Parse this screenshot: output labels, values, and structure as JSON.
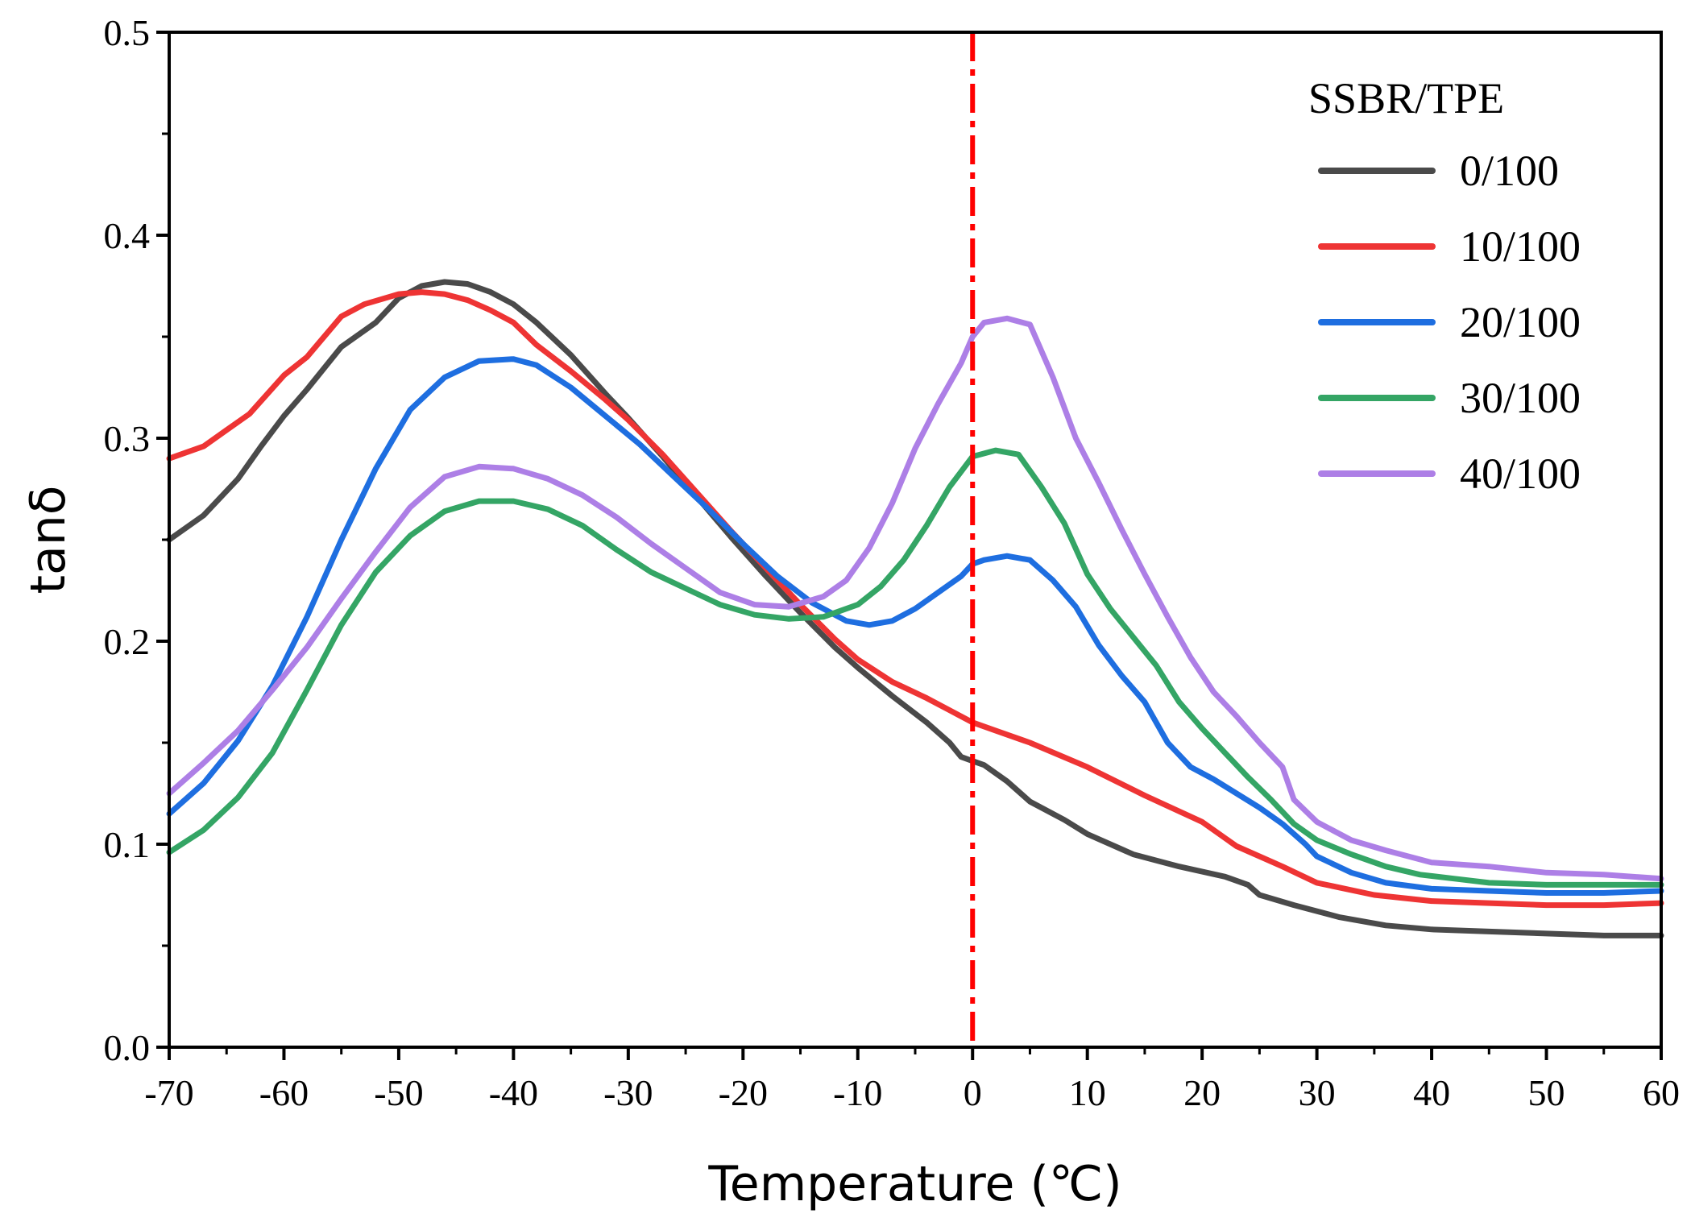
{
  "chart_data": {
    "type": "line",
    "title": "",
    "xlabel": "Temperature (℃)",
    "ylabel": "tanδ",
    "xlim": [
      -70,
      60
    ],
    "ylim": [
      0.0,
      0.5
    ],
    "xticks": [
      -70,
      -60,
      -50,
      -40,
      -30,
      -20,
      -10,
      0,
      10,
      20,
      30,
      40,
      50,
      60
    ],
    "xtick_labels": [
      "-70",
      "-60",
      "-50",
      "-40",
      "-30",
      "-20",
      "-10",
      "0",
      "10",
      "20",
      "30",
      "40",
      "50",
      "60"
    ],
    "yticks": [
      0.0,
      0.1,
      0.2,
      0.3,
      0.4,
      0.5
    ],
    "ytick_labels": [
      "0.0",
      "0.1",
      "0.2",
      "0.3",
      "0.4",
      "0.5"
    ],
    "grid": false,
    "legend_title": "SSBR/TPE",
    "legend_position": "top-right",
    "reference_line": {
      "x": 0,
      "color": "#ff0000",
      "style": "dash-dot"
    },
    "series": [
      {
        "name": "0/100",
        "color": "#4a4a4a",
        "x": [
          -70,
          -67,
          -64,
          -62,
          -60,
          -58,
          -55,
          -52,
          -50,
          -48,
          -46,
          -44,
          -42,
          -40,
          -38,
          -35,
          -32,
          -30,
          -27,
          -24,
          -21,
          -18,
          -15,
          -12,
          -10,
          -7,
          -4,
          -2,
          -1,
          0,
          1,
          3,
          5,
          8,
          10,
          14,
          18,
          22,
          24,
          25,
          28,
          32,
          36,
          40,
          45,
          50,
          55,
          60
        ],
        "y": [
          0.25,
          0.262,
          0.28,
          0.296,
          0.311,
          0.324,
          0.345,
          0.357,
          0.369,
          0.375,
          0.377,
          0.376,
          0.372,
          0.366,
          0.357,
          0.341,
          0.322,
          0.31,
          0.291,
          0.271,
          0.251,
          0.232,
          0.214,
          0.197,
          0.187,
          0.173,
          0.16,
          0.15,
          0.143,
          0.141,
          0.139,
          0.131,
          0.121,
          0.112,
          0.105,
          0.095,
          0.089,
          0.084,
          0.08,
          0.075,
          0.07,
          0.064,
          0.06,
          0.058,
          0.057,
          0.056,
          0.055,
          0.055
        ]
      },
      {
        "name": "10/100",
        "color": "#ee3434",
        "x": [
          -70,
          -67,
          -65,
          -63,
          -60,
          -58,
          -55,
          -53,
          -50,
          -48,
          -46,
          -44,
          -42,
          -40,
          -38,
          -35,
          -32,
          -30,
          -27,
          -24,
          -21,
          -18,
          -15,
          -12,
          -10,
          -7,
          -4,
          -2,
          0,
          2,
          5,
          10,
          15,
          20,
          23,
          27,
          30,
          35,
          40,
          45,
          50,
          55,
          60
        ],
        "y": [
          0.29,
          0.296,
          0.304,
          0.312,
          0.331,
          0.34,
          0.36,
          0.366,
          0.371,
          0.372,
          0.371,
          0.368,
          0.363,
          0.357,
          0.346,
          0.333,
          0.319,
          0.309,
          0.292,
          0.273,
          0.254,
          0.236,
          0.218,
          0.201,
          0.191,
          0.18,
          0.172,
          0.166,
          0.16,
          0.156,
          0.15,
          0.138,
          0.124,
          0.111,
          0.099,
          0.089,
          0.081,
          0.075,
          0.072,
          0.071,
          0.07,
          0.07,
          0.071
        ]
      },
      {
        "name": "20/100",
        "color": "#1e6ee0",
        "x": [
          -70,
          -67,
          -64,
          -61,
          -58,
          -55,
          -52,
          -49,
          -46,
          -43,
          -40,
          -38,
          -35,
          -32,
          -29,
          -26,
          -23,
          -20,
          -17,
          -14,
          -11,
          -9,
          -7,
          -5,
          -3,
          -1,
          0,
          1,
          3,
          5,
          7,
          9,
          11,
          13,
          15,
          17,
          19,
          21,
          23,
          25,
          27,
          29,
          30,
          33,
          36,
          40,
          45,
          50,
          55,
          60
        ],
        "y": [
          0.115,
          0.13,
          0.151,
          0.178,
          0.212,
          0.25,
          0.285,
          0.314,
          0.33,
          0.338,
          0.339,
          0.336,
          0.325,
          0.311,
          0.297,
          0.281,
          0.265,
          0.248,
          0.232,
          0.219,
          0.21,
          0.208,
          0.21,
          0.216,
          0.224,
          0.232,
          0.238,
          0.24,
          0.242,
          0.24,
          0.23,
          0.217,
          0.198,
          0.183,
          0.17,
          0.15,
          0.138,
          0.132,
          0.125,
          0.118,
          0.11,
          0.1,
          0.094,
          0.086,
          0.081,
          0.078,
          0.077,
          0.076,
          0.076,
          0.077
        ]
      },
      {
        "name": "30/100",
        "color": "#34a565",
        "x": [
          -70,
          -67,
          -64,
          -61,
          -58,
          -55,
          -52,
          -49,
          -46,
          -43,
          -40,
          -37,
          -34,
          -31,
          -28,
          -25,
          -22,
          -19,
          -16,
          -13,
          -10,
          -8,
          -6,
          -4,
          -2,
          0,
          2,
          4,
          6,
          8,
          10,
          12,
          14,
          16,
          18,
          20,
          22,
          24,
          26,
          28,
          30,
          33,
          36,
          39,
          42,
          45,
          50,
          55,
          60
        ],
        "y": [
          0.096,
          0.107,
          0.123,
          0.145,
          0.176,
          0.208,
          0.234,
          0.252,
          0.264,
          0.269,
          0.269,
          0.265,
          0.257,
          0.245,
          0.234,
          0.226,
          0.218,
          0.213,
          0.211,
          0.212,
          0.218,
          0.227,
          0.24,
          0.257,
          0.276,
          0.291,
          0.294,
          0.292,
          0.276,
          0.258,
          0.233,
          0.216,
          0.202,
          0.188,
          0.17,
          0.157,
          0.145,
          0.133,
          0.122,
          0.11,
          0.102,
          0.095,
          0.089,
          0.085,
          0.083,
          0.081,
          0.08,
          0.08,
          0.08
        ]
      },
      {
        "name": "40/100",
        "color": "#ad7fe6",
        "x": [
          -70,
          -67,
          -64,
          -61,
          -58,
          -55,
          -52,
          -49,
          -46,
          -43,
          -40,
          -37,
          -34,
          -31,
          -28,
          -25,
          -22,
          -19,
          -16,
          -13,
          -11,
          -9,
          -7,
          -5,
          -3,
          -1,
          0,
          1,
          3,
          5,
          7,
          9,
          11,
          13,
          15,
          17,
          19,
          21,
          23,
          25,
          27,
          28,
          30,
          33,
          36,
          40,
          45,
          50,
          55,
          60
        ],
        "y": [
          0.125,
          0.14,
          0.156,
          0.176,
          0.197,
          0.221,
          0.244,
          0.266,
          0.281,
          0.286,
          0.285,
          0.28,
          0.272,
          0.261,
          0.248,
          0.236,
          0.224,
          0.218,
          0.217,
          0.222,
          0.23,
          0.246,
          0.268,
          0.295,
          0.317,
          0.337,
          0.35,
          0.357,
          0.359,
          0.356,
          0.33,
          0.3,
          0.278,
          0.255,
          0.233,
          0.212,
          0.192,
          0.175,
          0.163,
          0.15,
          0.138,
          0.122,
          0.111,
          0.102,
          0.097,
          0.091,
          0.089,
          0.086,
          0.085,
          0.083
        ]
      }
    ]
  }
}
